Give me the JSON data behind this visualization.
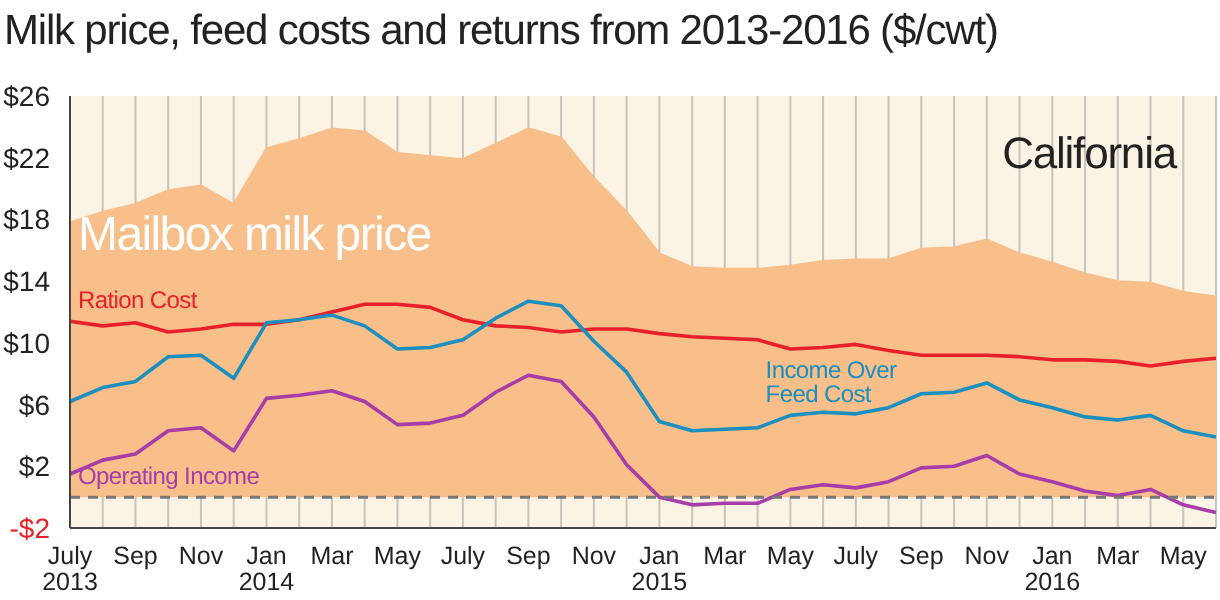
{
  "chart_data": {
    "type": "line",
    "title": "Milk price, feed costs and returns from 2013-2016 ($/cwt)",
    "annotations": [
      "California"
    ],
    "categories": [
      "July 2013",
      null,
      "Sep",
      null,
      "Nov",
      null,
      "Jan 2014",
      null,
      "Mar",
      null,
      "May",
      null,
      "July",
      null,
      "Sep",
      null,
      "Nov",
      null,
      "Jan 2015",
      null,
      "Mar",
      null,
      "May",
      null,
      "July",
      null,
      "Sep",
      null,
      "Nov",
      null,
      "Jan 2016",
      null,
      "Mar",
      null,
      "May",
      null
    ],
    "series": [
      {
        "name": "Mailbox milk price",
        "type": "area",
        "color": "#f9bf8a",
        "values": [
          17.8,
          18.5,
          19.0,
          19.9,
          20.2,
          19.0,
          22.6,
          23.2,
          23.9,
          23.7,
          22.3,
          22.1,
          21.9,
          22.9,
          23.9,
          23.3,
          20.7,
          18.5,
          15.8,
          14.9,
          14.8,
          14.8,
          15.0,
          15.3,
          15.4,
          15.4,
          16.1,
          16.2,
          16.7,
          15.8,
          15.2,
          14.5,
          14.0,
          13.9,
          13.3,
          13.0
        ]
      },
      {
        "name": "Ration Cost",
        "color": "#e8202a",
        "values": [
          11.4,
          11.1,
          11.3,
          10.7,
          10.9,
          11.2,
          11.2,
          11.5,
          12.0,
          12.5,
          12.5,
          12.3,
          11.5,
          11.1,
          11.0,
          10.7,
          10.9,
          10.9,
          10.6,
          10.4,
          10.3,
          10.2,
          9.6,
          9.7,
          9.9,
          9.5,
          9.2,
          9.2,
          9.2,
          9.1,
          8.9,
          8.9,
          8.8,
          8.5,
          8.8,
          9.0
        ]
      },
      {
        "name": "Income Over Feed Cost",
        "color": "#1a8fc0",
        "values": [
          6.2,
          7.1,
          7.5,
          9.1,
          9.2,
          7.7,
          11.3,
          11.5,
          11.8,
          11.1,
          9.6,
          9.7,
          10.2,
          11.6,
          12.7,
          12.4,
          10.1,
          8.1,
          4.9,
          4.3,
          4.4,
          4.5,
          5.3,
          5.5,
          5.4,
          5.8,
          6.7,
          6.8,
          7.4,
          6.3,
          5.8,
          5.2,
          5.0,
          5.3,
          4.3,
          3.9
        ]
      },
      {
        "name": "Operating Income",
        "color": "#a63da8",
        "values": [
          1.5,
          2.4,
          2.8,
          4.3,
          4.5,
          3.0,
          6.4,
          6.6,
          6.9,
          6.2,
          4.7,
          4.8,
          5.3,
          6.8,
          7.9,
          7.5,
          5.2,
          2.1,
          0,
          -0.5,
          -0.4,
          -0.4,
          0.5,
          0.8,
          0.6,
          1.0,
          1.9,
          2.0,
          2.7,
          1.5,
          1.0,
          0.4,
          0.1,
          0.5,
          -0.5,
          -1.0
        ]
      }
    ],
    "ylim": [
      -2,
      26
    ],
    "yticks": [
      {
        "value": -2,
        "label": "-$2"
      },
      {
        "value": 2,
        "label": "$2"
      },
      {
        "value": 6,
        "label": "$6"
      },
      {
        "value": 10,
        "label": "$10"
      },
      {
        "value": 14,
        "label": "$14"
      },
      {
        "value": 18,
        "label": "$18"
      },
      {
        "value": 22,
        "label": "$22"
      },
      {
        "value": 26,
        "label": "$26"
      }
    ],
    "ref_lines": [
      {
        "axis": "y",
        "value": 0,
        "color": "#777777",
        "line_style": "dashed"
      }
    ],
    "grid": "x",
    "legend": false,
    "marker": "none",
    "line_style": "solid"
  }
}
